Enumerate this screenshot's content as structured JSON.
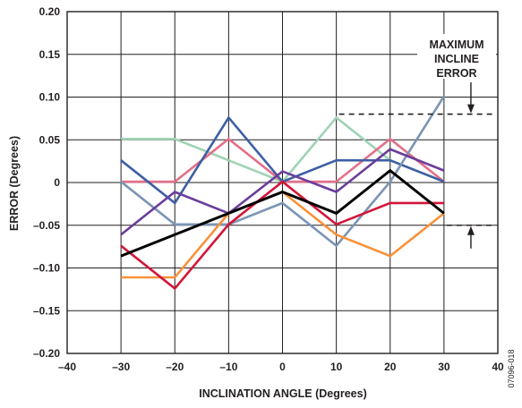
{
  "chart_data": {
    "type": "line",
    "xlabel": "INCLINATION ANGLE (Degrees)",
    "ylabel": "ERROR (Degrees)",
    "xlim": [
      -40,
      40
    ],
    "ylim": [
      -0.2,
      0.2
    ],
    "x_ticks": [
      -40,
      -30,
      -20,
      -10,
      0,
      10,
      20,
      30,
      40
    ],
    "x_tick_labels": [
      "–40",
      "–30",
      "–20",
      "–10",
      "0",
      "10",
      "20",
      "30",
      "40"
    ],
    "y_ticks": [
      0.2,
      0.15,
      0.1,
      0.05,
      0,
      -0.05,
      -0.1,
      -0.15,
      -0.2
    ],
    "y_tick_labels": [
      "0.20",
      "0.15",
      "0.10",
      "0.05",
      "0",
      "–0.05",
      "–0.10",
      "–0.15",
      "–0.20"
    ],
    "grid": true,
    "legend": "none",
    "x": [
      -30,
      -20,
      -10,
      0,
      10,
      20,
      30
    ],
    "series": [
      {
        "color": "#9fd3b5",
        "values": [
          0.051,
          0.051,
          0.026,
          0.001,
          0.076,
          0.026,
          0.001
        ]
      },
      {
        "color": "#e4708a",
        "values": [
          0.001,
          0.001,
          0.051,
          0.001,
          0.001,
          0.051,
          0.001
        ]
      },
      {
        "color": "#3d5fa3",
        "values": [
          0.026,
          -0.024,
          0.076,
          0.001,
          0.026,
          0.026,
          0.001
        ]
      },
      {
        "color": "#7b95b5",
        "values": [
          0.001,
          -0.049,
          -0.049,
          -0.024,
          -0.074,
          0.001,
          0.101
        ]
      },
      {
        "color": "#6a3d9a",
        "values": [
          -0.061,
          -0.011,
          -0.036,
          0.013,
          -0.011,
          0.039,
          0.014
        ]
      },
      {
        "color": "#f7923a",
        "values": [
          -0.111,
          -0.111,
          -0.036,
          -0.011,
          -0.061,
          -0.086,
          -0.036
        ]
      },
      {
        "color": "#d2163a",
        "values": [
          -0.074,
          -0.124,
          -0.049,
          0.001,
          -0.049,
          -0.024,
          -0.024
        ]
      },
      {
        "color": "#000000",
        "values": [
          -0.086,
          -0.061,
          -0.036,
          -0.011,
          -0.036,
          0.014,
          -0.036
        ]
      }
    ],
    "annotation": {
      "lines": [
        "MAXIMUM",
        "INCLINE",
        "ERROR"
      ],
      "upper_y": 0.08,
      "lower_y": -0.05
    },
    "figure_code": "07096-018"
  }
}
